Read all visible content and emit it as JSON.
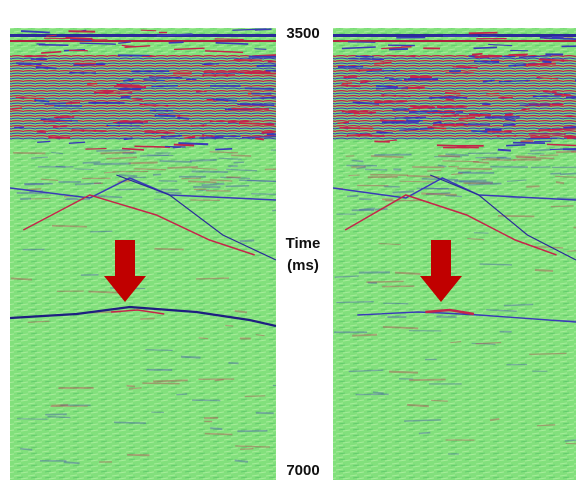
{
  "axis": {
    "top": "3500",
    "title": [
      "Time",
      "(ms)"
    ],
    "bottom": "7000"
  }
}
